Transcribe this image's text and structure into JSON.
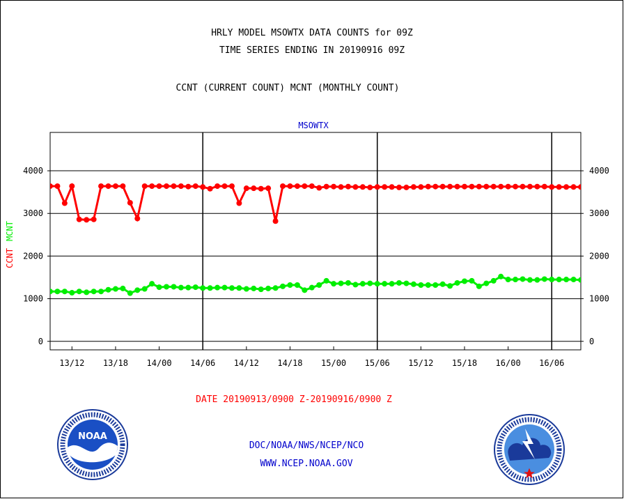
{
  "header": {
    "title_line1": "HRLY MODEL MSOWTX DATA COUNTS for 09Z",
    "title_line2": "TIME SERIES ENDING IN 20190916 09Z",
    "subtitle": "CCNT (CURRENT COUNT) MCNT (MONTHLY COUNT)"
  },
  "footer": {
    "date_range": "DATE 20190913/0900 Z-20190916/0900 Z",
    "credit_line1": "DOC/NOAA/NWS/NCEP/NCO",
    "credit_line2": "WWW.NCEP.NOAA.GOV"
  },
  "logos": {
    "left": "noaa-logo",
    "right": "national-weather-service-logo"
  },
  "chart_data": {
    "type": "line",
    "title": "MSOWTX",
    "ylabel_ccnt": "CCNT",
    "ylabel_mcnt": "MCNT",
    "ylim": [
      -200,
      4900
    ],
    "yticks": [
      0,
      1000,
      2000,
      3000,
      4000
    ],
    "ytick_labels": [
      "0",
      "1000",
      "2000",
      "3000",
      "4000"
    ],
    "xlim": [
      10,
      83
    ],
    "xticks": [
      13,
      19,
      25,
      31,
      37,
      43,
      49,
      55,
      61,
      67,
      73,
      79
    ],
    "xtick_labels": [
      "13/12",
      "13/18",
      "14/00",
      "14/06",
      "14/12",
      "14/18",
      "15/00",
      "15/06",
      "15/12",
      "15/18",
      "16/00",
      "16/06"
    ],
    "day_boundaries": [
      31,
      55,
      79
    ],
    "grid": true,
    "colors": {
      "ccnt": "#ff0000",
      "mcnt": "#00ee00",
      "title": "#0000cc",
      "axis": "#000000"
    },
    "series": [
      {
        "key": "ccnt",
        "x": [
          10,
          11,
          12,
          13,
          14,
          15,
          16,
          17,
          18,
          19,
          20,
          21,
          22,
          23,
          24,
          25,
          26,
          27,
          28,
          29,
          30,
          31,
          32,
          33,
          34,
          35,
          36,
          37,
          38,
          39,
          40,
          41,
          42,
          43,
          44,
          45,
          46,
          47,
          48,
          49,
          50,
          51,
          52,
          53,
          54,
          55,
          56,
          57,
          58,
          59,
          60,
          61,
          62,
          63,
          64,
          65,
          66,
          67,
          68,
          69,
          70,
          71,
          72,
          73,
          74,
          75,
          76,
          77,
          78,
          79,
          80,
          81,
          82,
          83
        ],
        "values": [
          3640,
          3640,
          3240,
          3640,
          2860,
          2850,
          2860,
          3640,
          3640,
          3640,
          3640,
          3250,
          2880,
          3640,
          3640,
          3640,
          3640,
          3640,
          3640,
          3630,
          3640,
          3620,
          3580,
          3640,
          3640,
          3640,
          3240,
          3590,
          3590,
          3580,
          3590,
          2820,
          3640,
          3640,
          3640,
          3640,
          3640,
          3600,
          3630,
          3630,
          3620,
          3630,
          3620,
          3620,
          3610,
          3620,
          3620,
          3620,
          3610,
          3610,
          3620,
          3620,
          3630,
          3630,
          3630,
          3630,
          3630,
          3630,
          3630,
          3630,
          3630,
          3630,
          3630,
          3630,
          3630,
          3630,
          3630,
          3630,
          3630,
          3620,
          3620,
          3620,
          3620,
          3620
        ]
      },
      {
        "key": "mcnt",
        "x": [
          10,
          11,
          12,
          13,
          14,
          15,
          16,
          17,
          18,
          19,
          20,
          21,
          22,
          23,
          24,
          25,
          26,
          27,
          28,
          29,
          30,
          31,
          32,
          33,
          34,
          35,
          36,
          37,
          38,
          39,
          40,
          41,
          42,
          43,
          44,
          45,
          46,
          47,
          48,
          49,
          50,
          51,
          52,
          53,
          54,
          55,
          56,
          57,
          58,
          59,
          60,
          61,
          62,
          63,
          64,
          65,
          66,
          67,
          68,
          69,
          70,
          71,
          72,
          73,
          74,
          75,
          76,
          77,
          78,
          79,
          80,
          81,
          82,
          83
        ],
        "values": [
          1170,
          1170,
          1170,
          1140,
          1170,
          1150,
          1170,
          1170,
          1210,
          1230,
          1240,
          1130,
          1200,
          1230,
          1350,
          1270,
          1280,
          1280,
          1260,
          1260,
          1270,
          1250,
          1250,
          1260,
          1260,
          1250,
          1250,
          1230,
          1240,
          1220,
          1240,
          1250,
          1290,
          1320,
          1320,
          1200,
          1260,
          1320,
          1420,
          1350,
          1360,
          1370,
          1330,
          1350,
          1360,
          1350,
          1350,
          1350,
          1370,
          1360,
          1340,
          1320,
          1320,
          1320,
          1340,
          1300,
          1370,
          1410,
          1420,
          1290,
          1360,
          1420,
          1520,
          1450,
          1450,
          1460,
          1440,
          1440,
          1460,
          1450,
          1450,
          1450,
          1450,
          1440
        ]
      }
    ]
  }
}
